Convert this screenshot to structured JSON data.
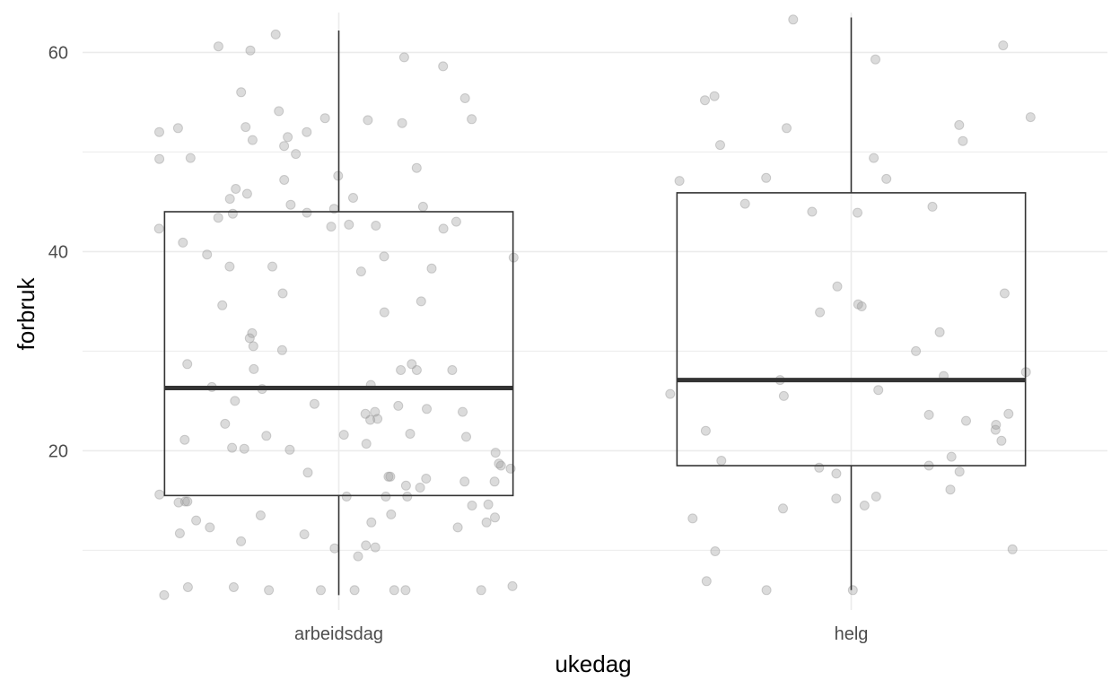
{
  "chart_data": {
    "type": "boxplot",
    "xlabel": "ukedag",
    "ylabel": "forbruk",
    "categories": [
      "arbeidsdag",
      "helg"
    ],
    "ylim": [
      4,
      64
    ],
    "y_ticks": [
      20,
      40,
      60
    ],
    "grid": true,
    "colors": {
      "grid": "#ebebeb",
      "box": "#333333",
      "points": "#999999",
      "background": "#ffffff"
    },
    "boxes": [
      {
        "category": "arbeidsdag",
        "min": 5.5,
        "q1": 15.5,
        "median": 26.3,
        "q3": 44.0,
        "max": 62.2
      },
      {
        "category": "helg",
        "min": 6.0,
        "q1": 18.5,
        "median": 27.1,
        "q3": 45.9,
        "max": 63.5
      }
    ],
    "points": [
      {
        "category": "arbeidsdag",
        "values": [
          52.0,
          49.3,
          47.2,
          46.3,
          31.8,
          38.5,
          16.3,
          15.6,
          5.5,
          61.8,
          59.5,
          56.0,
          53.4,
          52.9,
          52.5,
          45.4,
          43.9,
          42.5,
          39.4,
          38.5,
          35.8,
          34.6,
          28.1,
          28.2,
          26.6,
          26.2,
          24.5,
          23.9,
          22.7,
          18.5,
          17.4,
          16.9,
          15.4,
          13.0,
          12.8,
          12.3,
          6.0,
          6.0,
          60.2,
          52.4,
          51.2,
          45.8,
          44.7,
          44.3,
          43.8,
          42.3,
          39.5,
          38.0,
          35.0,
          28.7,
          28.1,
          23.2,
          21.5,
          21.1,
          21.4,
          16.5,
          14.9,
          14.5,
          13.6,
          12.3,
          11.7,
          10.3,
          6.0,
          6.0,
          6.4,
          49.4,
          44.5,
          43.4,
          43.0,
          42.3,
          33.9,
          31.3,
          26.4,
          24.2,
          23.9,
          20.7,
          18.7,
          18.2,
          15.4,
          15.4,
          14.8,
          14.6,
          10.9,
          9.4,
          6.0,
          60.6,
          55.4,
          54.1,
          53.3,
          50.6,
          49.8,
          48.4,
          47.6,
          45.3,
          39.7,
          28.7,
          25.0,
          23.7,
          20.1,
          16.9,
          17.8,
          13.3,
          10.2,
          6.3,
          58.6,
          53.2,
          52.0,
          51.5,
          42.7,
          42.6,
          40.9,
          38.3,
          30.5,
          30.1,
          28.1,
          24.7,
          23.1,
          21.7,
          21.6,
          20.3,
          20.2,
          19.8,
          17.4,
          17.2,
          14.9,
          13.5,
          12.8,
          11.6,
          10.5,
          6.3,
          6.0
        ]
      },
      {
        "category": "helg",
        "values": [
          60.7,
          47.1,
          44.8,
          44.5,
          36.5,
          34.5,
          33.9,
          35.8,
          30.0,
          18.3,
          23.0,
          13.2,
          9.9,
          59.3,
          55.6,
          53.5,
          47.3,
          47.4,
          44.0,
          25.5,
          21.0,
          19.4,
          19.0,
          15.2,
          14.5,
          6.0,
          63.3,
          55.2,
          51.1,
          27.9,
          22.1,
          17.7,
          16.1,
          14.2,
          22.6,
          50.7,
          52.7,
          43.9,
          34.7,
          31.9,
          27.5,
          27.1,
          26.1,
          25.7,
          23.7,
          23.6,
          18.5,
          17.9,
          15.4,
          6.0,
          52.4,
          49.4,
          22.0,
          10.1,
          6.9
        ]
      }
    ]
  }
}
